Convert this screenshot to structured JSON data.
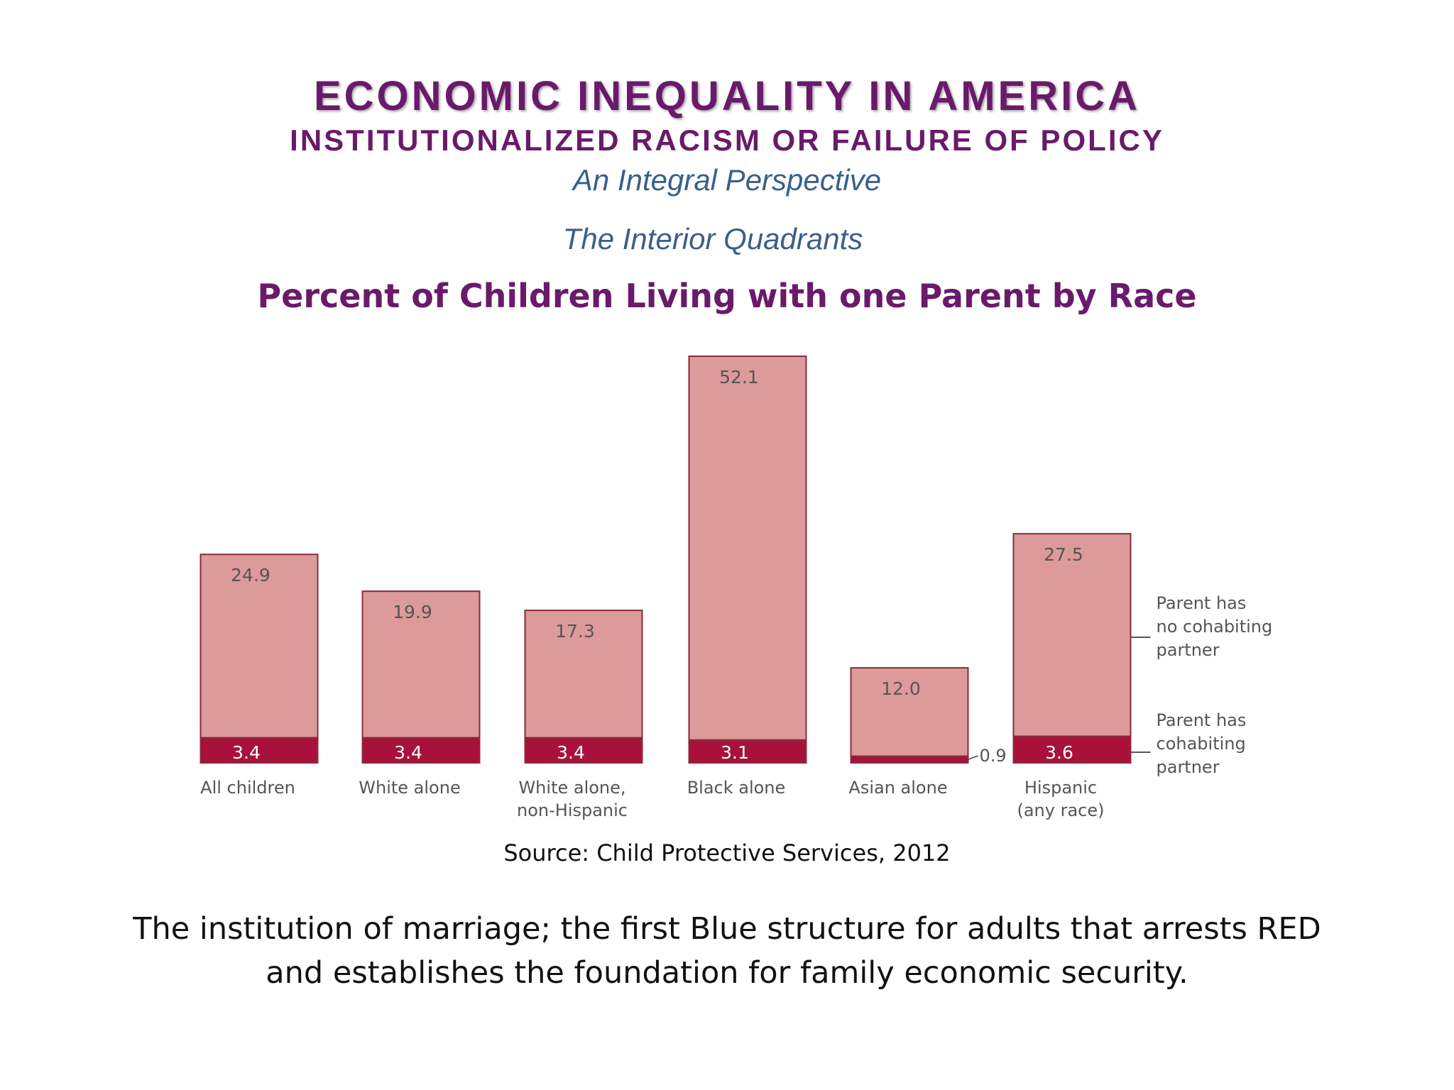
{
  "header": {
    "title": "ECONOMIC INEQUALITY IN AMERICA",
    "subtitle": "INSTITUTIONALIZED RACISM OR FAILURE OF POLICY",
    "perspective": "An Integral Perspective",
    "section": "The Interior Quadrants"
  },
  "chart_data": {
    "type": "bar",
    "stacked": true,
    "title": "Percent of Children Living with one Parent by Race",
    "categories": [
      "All children",
      "White alone",
      "White alone,\nnon-Hispanic",
      "Black alone",
      "Asian alone",
      "Hispanic\n(any race)"
    ],
    "series": [
      {
        "name": "Parent has cohabiting partner",
        "values": [
          3.4,
          3.4,
          3.4,
          3.1,
          0.9,
          3.6
        ],
        "color": "#a8123a"
      },
      {
        "name": "Parent has no cohabiting partner",
        "values": [
          24.9,
          19.9,
          17.3,
          52.1,
          12.0,
          27.5
        ],
        "color": "#dc9a9a"
      }
    ],
    "value_labels": {
      "top": [
        "24.9",
        "19.9",
        "17.3",
        "52.1",
        "12.0",
        "27.5"
      ],
      "bottom": [
        "3.4",
        "3.4",
        "3.4",
        "3.1",
        "0.9",
        "3.6"
      ]
    },
    "legend": [
      {
        "label": "Parent has\nno cohabiting\npartner"
      },
      {
        "label": "Parent has\ncohabiting\npartner"
      }
    ],
    "legend_placement": "right",
    "xlabel": "",
    "ylabel": "",
    "ylim": [
      0,
      55.2
    ]
  },
  "source": "Source: Child Protective Services, 2012",
  "caption": "The institution of marriage; the first Blue structure for adults that arrests RED and establishes the foundation for family economic security."
}
